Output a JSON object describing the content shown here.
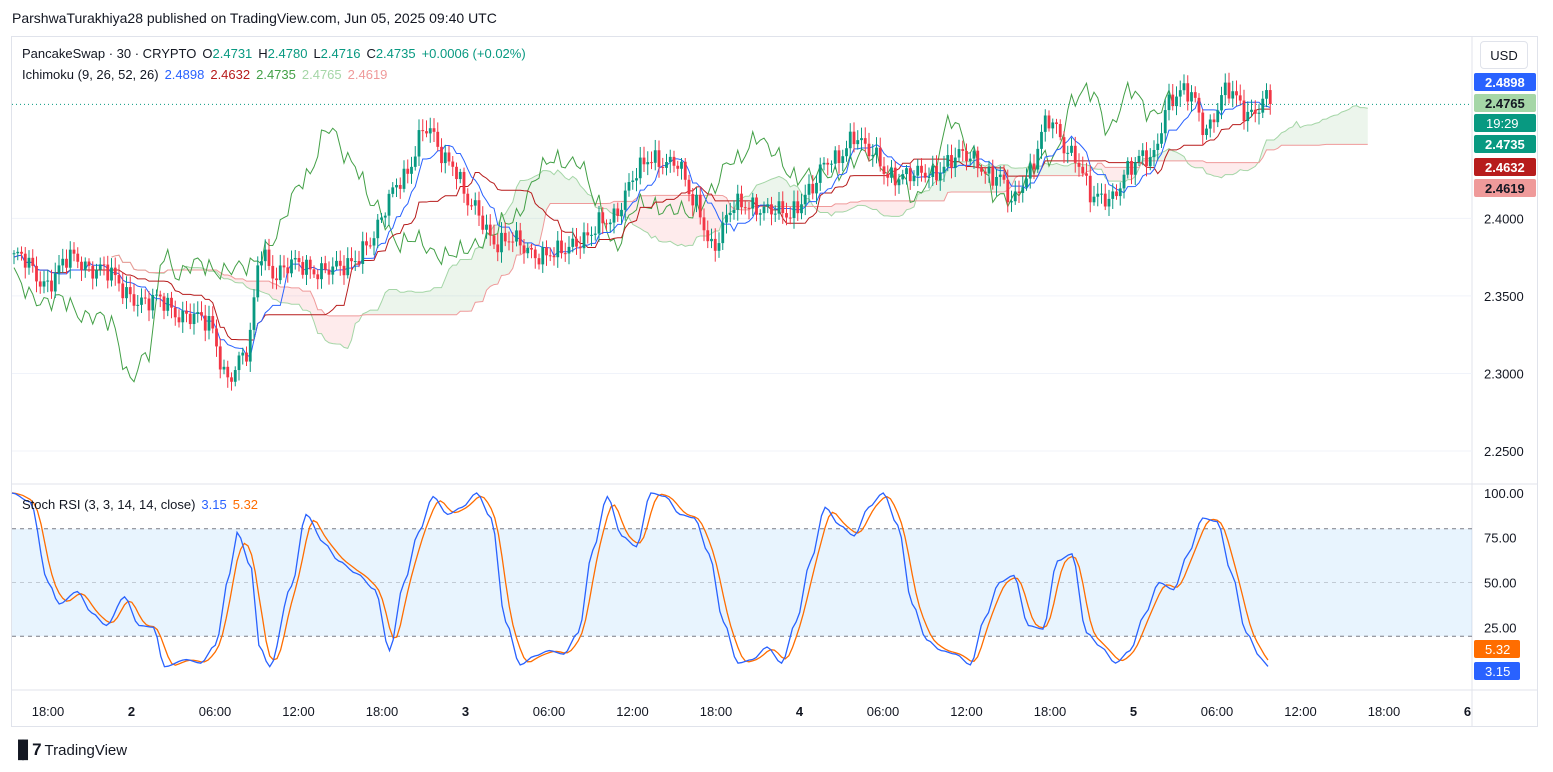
{
  "header": {
    "publisher_line": "ParshwaTurakhiya28 published on TradingView.com, Jun 05, 2025 09:40 UTC"
  },
  "symbol_legend": {
    "name": "PancakeSwap · 30 · CRYPTO",
    "o_label": "O",
    "o": "2.4731",
    "h_label": "H",
    "h": "2.4780",
    "l_label": "L",
    "l": "2.4716",
    "c_label": "C",
    "c": "2.4735",
    "change": "+0.0006 (+0.02%)"
  },
  "ichimoku_legend": {
    "name": "Ichimoku (9, 26, 52, 26)",
    "values": [
      "2.4898",
      "2.4632",
      "2.4735",
      "2.4765",
      "2.4619"
    ]
  },
  "stoch_legend": {
    "name": "Stoch RSI (3, 3, 14, 14, close)",
    "k": "3.15",
    "d": "5.32"
  },
  "currency_button": "USD",
  "footer": {
    "brand": "TradingView",
    "logo": "tv-logo-icon"
  },
  "colors": {
    "up": "#089981",
    "down": "#f23645",
    "tenkan": "#2962ff",
    "kijun": "#b71c1c",
    "chikou": "#43a047",
    "span_a": "#a5d6a7",
    "span_b": "#ef9a9a",
    "stoch_k": "#2962ff",
    "stoch_d": "#ff6d00"
  },
  "chart_data": [
    {
      "type": "candlestick",
      "title": "PancakeSwap · 30 · CRYPTO",
      "ylim": [
        2.23,
        2.515
      ],
      "y_ticks": [
        "2.2500",
        "2.3000",
        "2.3500",
        "2.4000"
      ],
      "x_ticks": [
        "18:00",
        "2",
        "06:00",
        "12:00",
        "18:00",
        "3",
        "06:00",
        "12:00",
        "18:00",
        "4",
        "06:00",
        "12:00",
        "18:00",
        "5",
        "06:00",
        "12:00",
        "18:00",
        "6"
      ],
      "last_price_line": 2.4735,
      "close_anchors": [
        [
          0,
          2.375
        ],
        [
          8,
          2.36
        ],
        [
          15,
          2.372
        ],
        [
          22,
          2.37
        ],
        [
          30,
          2.352
        ],
        [
          38,
          2.345
        ],
        [
          45,
          2.34
        ],
        [
          52,
          2.33
        ],
        [
          57,
          2.3
        ],
        [
          62,
          2.31
        ],
        [
          66,
          2.38
        ],
        [
          70,
          2.365
        ],
        [
          78,
          2.37
        ],
        [
          86,
          2.365
        ],
        [
          95,
          2.385
        ],
        [
          104,
          2.43
        ],
        [
          110,
          2.455
        ],
        [
          116,
          2.44
        ],
        [
          122,
          2.405
        ],
        [
          130,
          2.385
        ],
        [
          138,
          2.38
        ],
        [
          145,
          2.375
        ],
        [
          152,
          2.39
        ],
        [
          158,
          2.395
        ],
        [
          166,
          2.43
        ],
        [
          170,
          2.435
        ],
        [
          176,
          2.44
        ],
        [
          182,
          2.405
        ],
        [
          186,
          2.385
        ],
        [
          192,
          2.405
        ],
        [
          198,
          2.41
        ],
        [
          206,
          2.4
        ],
        [
          212,
          2.42
        ],
        [
          218,
          2.435
        ],
        [
          224,
          2.455
        ],
        [
          228,
          2.44
        ],
        [
          234,
          2.43
        ],
        [
          240,
          2.425
        ],
        [
          244,
          2.43
        ],
        [
          248,
          2.435
        ],
        [
          256,
          2.44
        ],
        [
          262,
          2.425
        ],
        [
          266,
          2.41
        ],
        [
          270,
          2.43
        ],
        [
          276,
          2.46
        ],
        [
          282,
          2.445
        ],
        [
          288,
          2.41
        ],
        [
          292,
          2.415
        ],
        [
          297,
          2.43
        ],
        [
          303,
          2.44
        ],
        [
          308,
          2.475
        ],
        [
          314,
          2.48
        ],
        [
          318,
          2.46
        ],
        [
          324,
          2.48
        ],
        [
          330,
          2.47
        ],
        [
          335,
          2.475
        ]
      ]
    },
    {
      "type": "ichimoku",
      "series": [
        {
          "name": "",
          "values": [
            2.4898
          ]
        },
        {
          "name": "",
          "values": [
            2.4632
          ]
        },
        {
          "name": "",
          "values": [
            2.4735
          ]
        },
        {
          "name": "",
          "values": [
            2.4765
          ]
        },
        {
          "name": "",
          "values": [
            2.4619
          ]
        }
      ]
    },
    {
      "type": "line",
      "title": "Stoch RSI (3, 3, 14, 14, close)",
      "ylim": [
        -10,
        105
      ],
      "y_ticks": [
        "25.00",
        "50.00",
        "75.00",
        "100.00"
      ],
      "levels": [
        20,
        80
      ],
      "k_anchors": [
        [
          0,
          100
        ],
        [
          5,
          95
        ],
        [
          10,
          50
        ],
        [
          13,
          38
        ],
        [
          18,
          45
        ],
        [
          22,
          33
        ],
        [
          26,
          26
        ],
        [
          31,
          42
        ],
        [
          35,
          26
        ],
        [
          39,
          25
        ],
        [
          42,
          3
        ],
        [
          48,
          7
        ],
        [
          52,
          5
        ],
        [
          56,
          15
        ],
        [
          60,
          55
        ],
        [
          62,
          78
        ],
        [
          66,
          58
        ],
        [
          68,
          15
        ],
        [
          71,
          3
        ],
        [
          77,
          48
        ],
        [
          81,
          88
        ],
        [
          86,
          72
        ],
        [
          90,
          62
        ],
        [
          95,
          55
        ],
        [
          100,
          46
        ],
        [
          104,
          12
        ],
        [
          108,
          50
        ],
        [
          112,
          78
        ],
        [
          116,
          98
        ],
        [
          120,
          88
        ],
        [
          124,
          92
        ],
        [
          128,
          100
        ],
        [
          132,
          86
        ],
        [
          136,
          28
        ],
        [
          140,
          4
        ],
        [
          144,
          9
        ],
        [
          148,
          12
        ],
        [
          152,
          10
        ],
        [
          156,
          22
        ],
        [
          160,
          68
        ],
        [
          164,
          98
        ],
        [
          168,
          76
        ],
        [
          172,
          70
        ],
        [
          176,
          100
        ],
        [
          180,
          98
        ],
        [
          184,
          88
        ],
        [
          188,
          86
        ],
        [
          192,
          66
        ],
        [
          196,
          28
        ],
        [
          200,
          5
        ],
        [
          204,
          7
        ],
        [
          208,
          14
        ],
        [
          212,
          5
        ],
        [
          216,
          28
        ],
        [
          220,
          62
        ],
        [
          224,
          92
        ],
        [
          228,
          82
        ],
        [
          232,
          76
        ],
        [
          236,
          92
        ],
        [
          240,
          100
        ],
        [
          244,
          82
        ],
        [
          248,
          38
        ],
        [
          252,
          18
        ],
        [
          256,
          12
        ],
        [
          260,
          10
        ],
        [
          264,
          4
        ],
        [
          268,
          30
        ],
        [
          272,
          50
        ],
        [
          276,
          54
        ],
        [
          280,
          26
        ],
        [
          284,
          24
        ],
        [
          288,
          62
        ],
        [
          292,
          66
        ],
        [
          296,
          22
        ],
        [
          300,
          14
        ],
        [
          304,
          5
        ],
        [
          308,
          12
        ],
        [
          312,
          32
        ],
        [
          316,
          50
        ],
        [
          320,
          46
        ],
        [
          324,
          66
        ],
        [
          328,
          86
        ],
        [
          332,
          84
        ],
        [
          336,
          55
        ],
        [
          340,
          22
        ],
        [
          344,
          8
        ],
        [
          346,
          3.15
        ]
      ]
    }
  ]
}
